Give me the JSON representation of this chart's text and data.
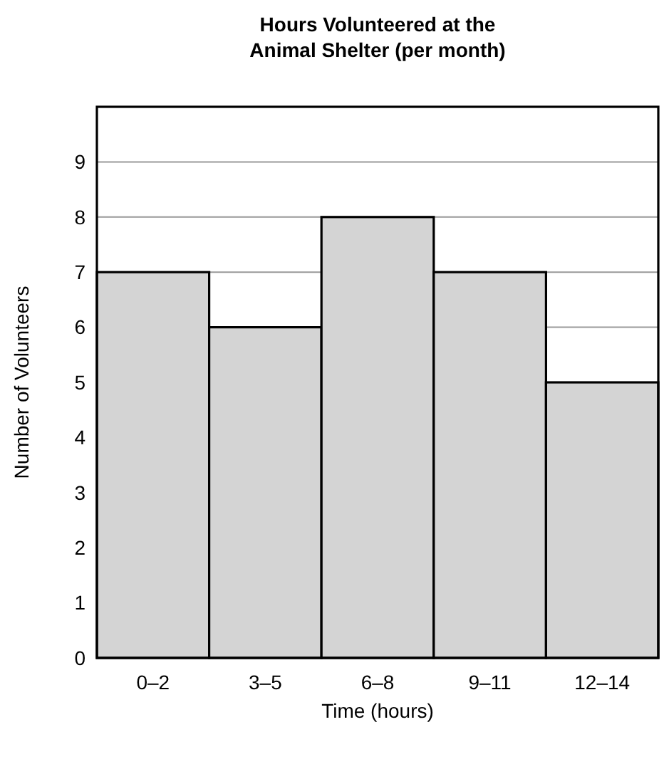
{
  "chart_data": {
    "type": "bar",
    "title": "Hours Volunteered at the Animal Shelter (per month)",
    "xlabel": "Time (hours)",
    "ylabel": "Number of Volunteers",
    "categories": [
      "0–2",
      "3–5",
      "6–8",
      "9–11",
      "12–14"
    ],
    "values": [
      7,
      6,
      8,
      7,
      5
    ],
    "color": "#d4d4d4",
    "ylim": [
      0,
      10
    ],
    "yticks": [
      0,
      1,
      2,
      3,
      4,
      5,
      6,
      7,
      8,
      9
    ],
    "grid": "y"
  }
}
